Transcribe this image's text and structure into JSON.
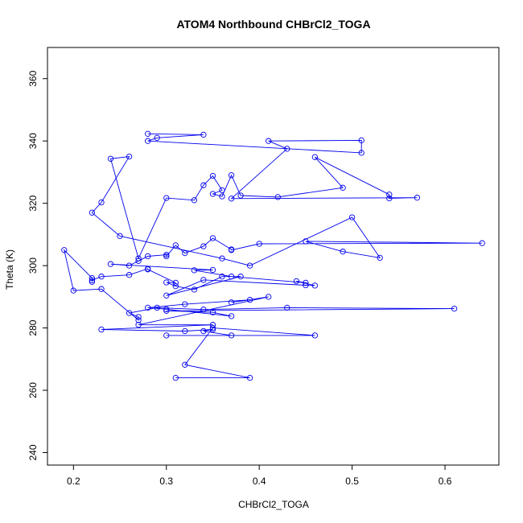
{
  "chart_data": {
    "type": "line",
    "title": "ATOM4 Northbound CHBrCl2_TOGA",
    "xlabel": "CHBrCl2_TOGA",
    "ylabel": "Theta (K)",
    "xlim": [
      0.172,
      0.658
    ],
    "ylim": [
      236,
      370
    ],
    "x_ticks": [
      0.2,
      0.3,
      0.4,
      0.5,
      0.6
    ],
    "x_tick_labels": [
      "0.2",
      "0.3",
      "0.4",
      "0.5",
      "0.6"
    ],
    "y_ticks": [
      240,
      260,
      280,
      300,
      320,
      340,
      360
    ],
    "y_tick_labels": [
      "240",
      "260",
      "280",
      "300",
      "320",
      "340",
      "360"
    ],
    "grid": false,
    "legend": "none",
    "colors": {
      "series": "#0000ee",
      "axis": "#000000",
      "background": "#ffffff"
    },
    "series": [
      {
        "marker": "open-circle",
        "points": [
          [
            0.31,
            264.0
          ],
          [
            0.39,
            264.0
          ],
          [
            0.32,
            268.2
          ],
          [
            0.35,
            280.0
          ],
          [
            0.46,
            277.6
          ],
          [
            0.3,
            277.6
          ],
          [
            0.37,
            277.6
          ],
          [
            0.34,
            279.0
          ],
          [
            0.35,
            279.5
          ],
          [
            0.32,
            279.0
          ],
          [
            0.23,
            279.5
          ],
          [
            0.35,
            281.0
          ],
          [
            0.27,
            281.0
          ],
          [
            0.41,
            290.0
          ],
          [
            0.37,
            288.2
          ],
          [
            0.39,
            289.0
          ],
          [
            0.32,
            287.6
          ],
          [
            0.28,
            286.5
          ],
          [
            0.3,
            286.0
          ],
          [
            0.37,
            283.8
          ],
          [
            0.35,
            285.0
          ],
          [
            0.3,
            285.5
          ],
          [
            0.61,
            286.2
          ],
          [
            0.43,
            286.5
          ],
          [
            0.34,
            285.9
          ],
          [
            0.29,
            286.5
          ],
          [
            0.26,
            284.8
          ],
          [
            0.27,
            283.5
          ],
          [
            0.27,
            282.5
          ],
          [
            0.23,
            292.5
          ],
          [
            0.2,
            292.0
          ],
          [
            0.19,
            305.0
          ],
          [
            0.22,
            296.0
          ],
          [
            0.22,
            294.8
          ],
          [
            0.22,
            295.3
          ],
          [
            0.23,
            296.5
          ],
          [
            0.26,
            297.0
          ],
          [
            0.28,
            299.0
          ],
          [
            0.28,
            298.8
          ],
          [
            0.31,
            294.5
          ],
          [
            0.3,
            294.6
          ],
          [
            0.31,
            293.4
          ],
          [
            0.33,
            292.3
          ],
          [
            0.36,
            296.5
          ],
          [
            0.38,
            296.5
          ],
          [
            0.3,
            290.4
          ],
          [
            0.34,
            295.4
          ],
          [
            0.45,
            293.7
          ],
          [
            0.46,
            293.6
          ],
          [
            0.44,
            295.0
          ],
          [
            0.45,
            294.5
          ],
          [
            0.37,
            296.5
          ],
          [
            0.33,
            298.5
          ],
          [
            0.35,
            298.6
          ],
          [
            0.24,
            300.5
          ],
          [
            0.26,
            300.0
          ],
          [
            0.27,
            301.5
          ],
          [
            0.28,
            303.0
          ],
          [
            0.3,
            303.5
          ],
          [
            0.3,
            303.0
          ],
          [
            0.31,
            306.5
          ],
          [
            0.32,
            304.0
          ],
          [
            0.34,
            306.2
          ],
          [
            0.35,
            308.8
          ],
          [
            0.37,
            305.2
          ],
          [
            0.37,
            305.0
          ],
          [
            0.4,
            307.0
          ],
          [
            0.64,
            307.2
          ],
          [
            0.45,
            307.8
          ],
          [
            0.49,
            304.5
          ],
          [
            0.53,
            302.5
          ],
          [
            0.5,
            315.5
          ],
          [
            0.39,
            300.0
          ],
          [
            0.36,
            302.3
          ],
          [
            0.25,
            309.5
          ],
          [
            0.22,
            317.0
          ],
          [
            0.23,
            320.3
          ],
          [
            0.26,
            335.0
          ],
          [
            0.24,
            334.3
          ],
          [
            0.27,
            302.3
          ],
          [
            0.3,
            321.7
          ],
          [
            0.33,
            321.0
          ],
          [
            0.34,
            325.8
          ],
          [
            0.35,
            328.8
          ],
          [
            0.36,
            324.2
          ],
          [
            0.35,
            323.0
          ],
          [
            0.36,
            322.2
          ],
          [
            0.37,
            329.0
          ],
          [
            0.38,
            322.5
          ],
          [
            0.42,
            322.0
          ],
          [
            0.49,
            325.0
          ],
          [
            0.46,
            334.8
          ],
          [
            0.54,
            322.8
          ],
          [
            0.54,
            321.6
          ],
          [
            0.57,
            321.8
          ],
          [
            0.37,
            321.5
          ],
          [
            0.43,
            337.5
          ],
          [
            0.41,
            340.0
          ],
          [
            0.51,
            340.2
          ],
          [
            0.51,
            336.2
          ],
          [
            0.28,
            340.0
          ],
          [
            0.29,
            341.0
          ],
          [
            0.34,
            342.0
          ],
          [
            0.28,
            342.3
          ]
        ]
      }
    ]
  }
}
